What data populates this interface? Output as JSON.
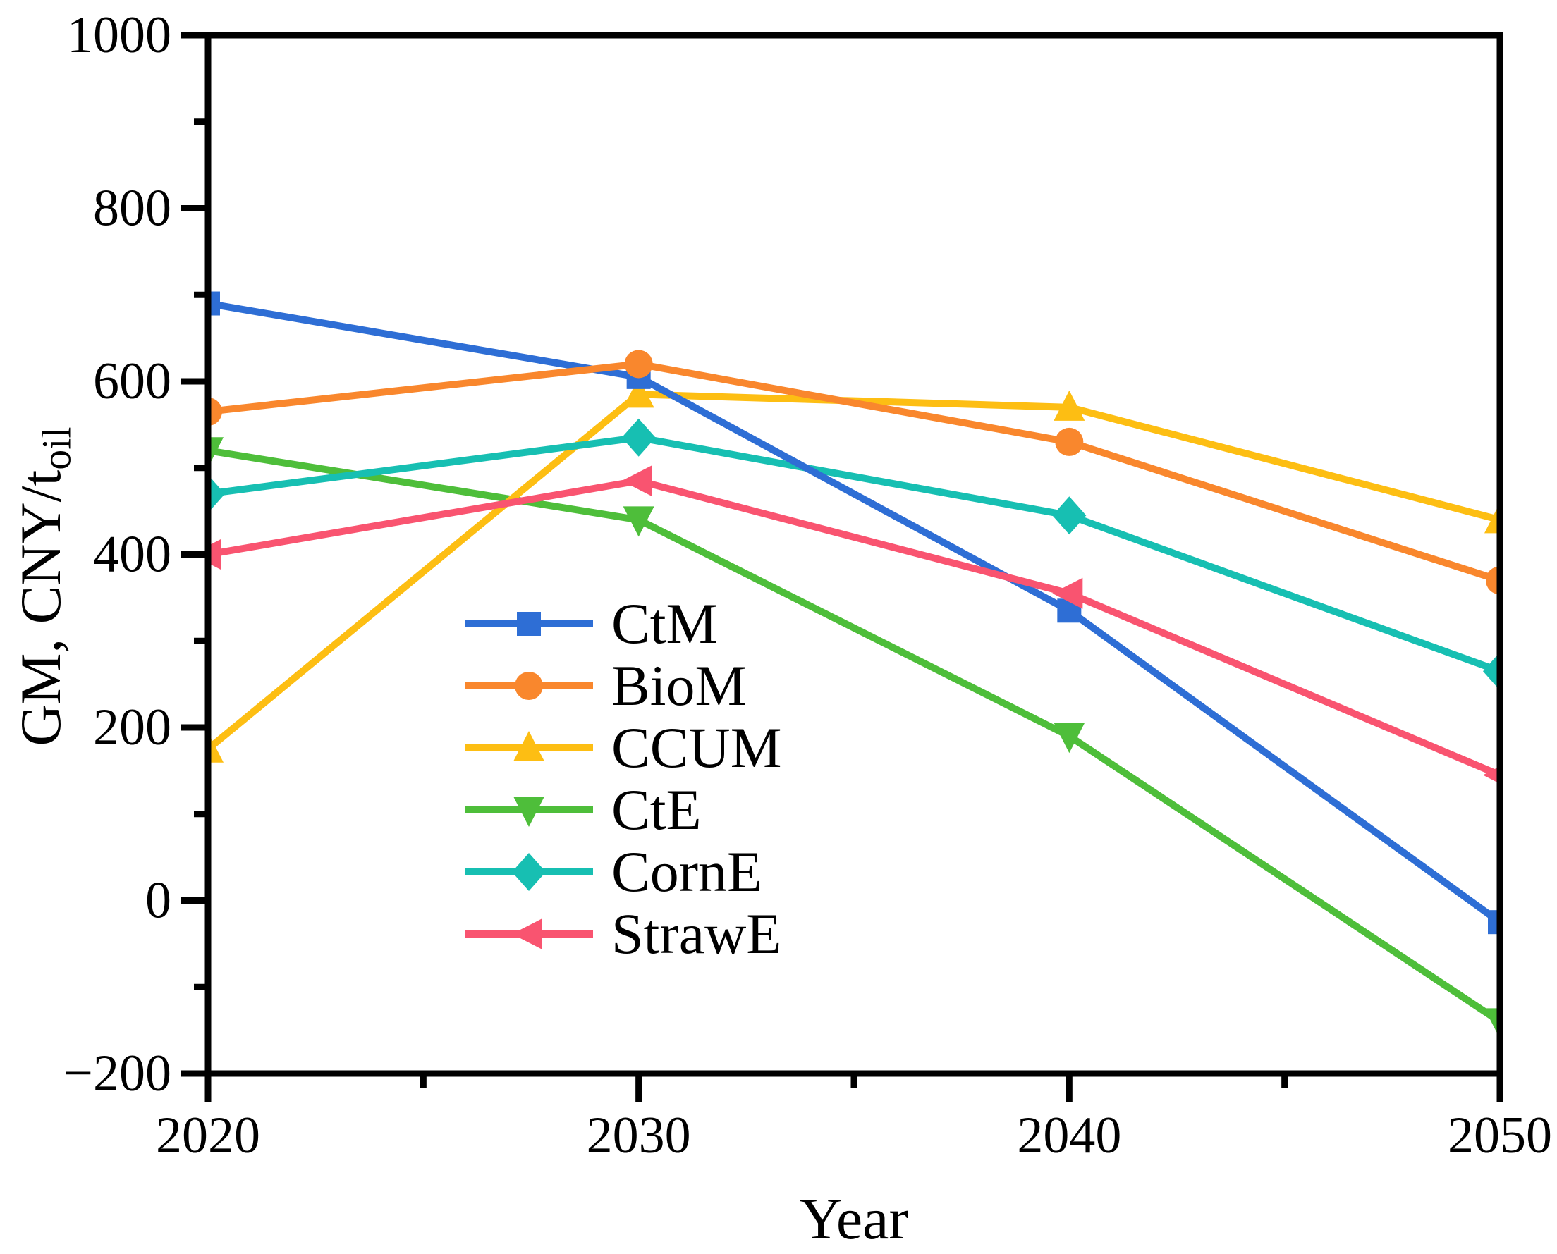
{
  "chart_data": {
    "type": "line",
    "title": "",
    "xlabel": "Year",
    "ylabel_main": "GM, CNY/t",
    "ylabel_sub": "oil",
    "x": [
      2020,
      2030,
      2040,
      2050
    ],
    "xlim": [
      2020,
      2050
    ],
    "ylim": [
      -200,
      1000
    ],
    "x_major_ticks": [
      2020,
      2030,
      2040,
      2050
    ],
    "x_tick_labels": [
      "2020",
      "2030",
      "2040",
      "2050"
    ],
    "x_minor_ticks": [
      2025,
      2035,
      2045
    ],
    "y_major_ticks": [
      1000,
      800,
      600,
      400,
      200,
      0,
      -200
    ],
    "y_tick_labels": [
      "1000",
      "800",
      "600",
      "400",
      "200",
      "0",
      "−200"
    ],
    "y_minor_ticks": [
      900,
      700,
      500,
      300,
      100,
      -100
    ],
    "grid": false,
    "legend_position": "inside-center-left",
    "axis_color": "#000000",
    "background": "#ffffff",
    "series": [
      {
        "name": "CtM",
        "color": "#2E6ED5",
        "marker": "square",
        "values": [
          690,
          605,
          335,
          -25
        ]
      },
      {
        "name": "BioM",
        "color": "#F9872D",
        "marker": "circle",
        "values": [
          565,
          620,
          530,
          370
        ]
      },
      {
        "name": "CCUM",
        "color": "#FDBE13",
        "marker": "triangle-up",
        "values": [
          175,
          585,
          570,
          440
        ]
      },
      {
        "name": "CtE",
        "color": "#4EBE3A",
        "marker": "triangle-down",
        "values": [
          520,
          440,
          190,
          -140
        ]
      },
      {
        "name": "CornE",
        "color": "#17BFB2",
        "marker": "diamond",
        "values": [
          470,
          535,
          445,
          265
        ]
      },
      {
        "name": "StrawE",
        "color": "#F95470",
        "marker": "triangle-left",
        "values": [
          400,
          485,
          355,
          145
        ]
      }
    ],
    "z_order": [
      "CtE",
      "CCUM",
      "CornE",
      "CtM",
      "BioM",
      "StrawE"
    ]
  }
}
